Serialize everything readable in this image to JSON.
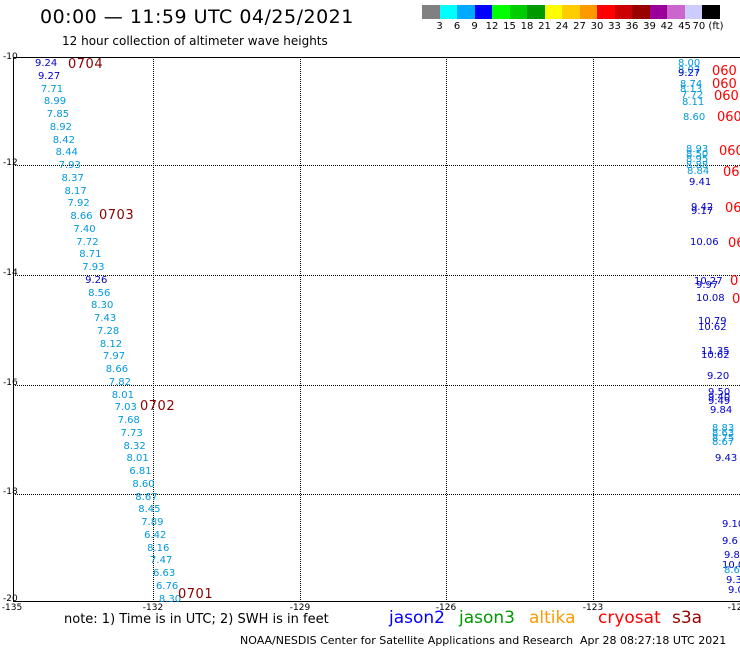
{
  "header": {
    "title": "00:00 — 11:59 UTC 04/25/2021",
    "subtitle": "12 hour collection of altimeter wave heights"
  },
  "colorbar": {
    "colors": [
      "#808080",
      "#00ffff",
      "#00aaff",
      "#0000ff",
      "#00ff00",
      "#00cc00",
      "#009900",
      "#ffff00",
      "#ffcc00",
      "#ff9900",
      "#ff0000",
      "#cc0000",
      "#990000",
      "#990099",
      "#cc66cc",
      "#ccccff",
      "#000000"
    ],
    "labels": [
      "3",
      "6",
      "9",
      "12",
      "15",
      "18",
      "21",
      "24",
      "27",
      "30",
      "33",
      "36",
      "39",
      "42",
      "45",
      "70 (ft)"
    ]
  },
  "axes": {
    "ylabels": [
      "-10",
      "-12",
      "-14",
      "-16",
      "-18",
      "-20"
    ],
    "xlabels": [
      "-135",
      "-132",
      "-129",
      "-126",
      "-123",
      "-12"
    ]
  },
  "track_left": {
    "points": [
      {
        "v": "9.24",
        "c": "#0000cc"
      },
      {
        "v": "9.27",
        "c": "#0000cc"
      },
      {
        "v": "7.71",
        "c": "#0099dd"
      },
      {
        "v": "8.99",
        "c": "#0099dd"
      },
      {
        "v": "7.85",
        "c": "#0099dd"
      },
      {
        "v": "8.92",
        "c": "#0099dd"
      },
      {
        "v": "8.42",
        "c": "#0099dd"
      },
      {
        "v": "8.44",
        "c": "#0099dd"
      },
      {
        "v": "7.93",
        "c": "#0099dd"
      },
      {
        "v": "8.37",
        "c": "#0099dd"
      },
      {
        "v": "8.17",
        "c": "#0099dd"
      },
      {
        "v": "7.92",
        "c": "#0099dd"
      },
      {
        "v": "8.66",
        "c": "#0099dd"
      },
      {
        "v": "7.40",
        "c": "#0099dd"
      },
      {
        "v": "7.72",
        "c": "#0099dd"
      },
      {
        "v": "8.71",
        "c": "#0099dd"
      },
      {
        "v": "7.93",
        "c": "#0099dd"
      },
      {
        "v": "9.26",
        "c": "#0000cc"
      },
      {
        "v": "8.56",
        "c": "#0099dd"
      },
      {
        "v": "8.30",
        "c": "#0099dd"
      },
      {
        "v": "7.43",
        "c": "#0099dd"
      },
      {
        "v": "7.28",
        "c": "#0099dd"
      },
      {
        "v": "8.12",
        "c": "#0099dd"
      },
      {
        "v": "7.97",
        "c": "#0099dd"
      },
      {
        "v": "8.66",
        "c": "#0099dd"
      },
      {
        "v": "7.82",
        "c": "#0099dd"
      },
      {
        "v": "8.01",
        "c": "#0099dd"
      },
      {
        "v": "7.03",
        "c": "#0099dd"
      },
      {
        "v": "7.68",
        "c": "#0099dd"
      },
      {
        "v": "7.73",
        "c": "#0099dd"
      },
      {
        "v": "8.32",
        "c": "#0099dd"
      },
      {
        "v": "8.01",
        "c": "#0099dd"
      },
      {
        "v": "6.81",
        "c": "#0099dd"
      },
      {
        "v": "8.60",
        "c": "#0099dd"
      },
      {
        "v": "8.67",
        "c": "#0099dd"
      },
      {
        "v": "8.45",
        "c": "#0099dd"
      },
      {
        "v": "7.89",
        "c": "#0099dd"
      },
      {
        "v": "6.42",
        "c": "#0099dd"
      },
      {
        "v": "8.16",
        "c": "#0099dd"
      },
      {
        "v": "7.47",
        "c": "#0099dd"
      },
      {
        "v": "6.63",
        "c": "#0099dd"
      },
      {
        "v": "6.76",
        "c": "#0099dd"
      },
      {
        "v": "8.30",
        "c": "#0099dd"
      }
    ],
    "times": [
      "0704",
      "0703",
      "0702",
      "0701"
    ]
  },
  "track_right": {
    "points": [
      {
        "v": "8.00",
        "c": "#0099dd"
      },
      {
        "v": "8.07",
        "c": "#0099dd"
      },
      {
        "v": "9.27",
        "c": "#0000cc"
      },
      {
        "v": "8.74",
        "c": "#0099dd"
      },
      {
        "v": "8.13",
        "c": "#0099dd"
      },
      {
        "v": "7.72",
        "c": "#0099dd"
      },
      {
        "v": "8.11",
        "c": "#0099dd"
      },
      {
        "v": "8.60",
        "c": "#0099dd"
      },
      {
        "v": "8.93",
        "c": "#0099dd"
      },
      {
        "v": "8.50",
        "c": "#0099dd"
      },
      {
        "v": "8.95",
        "c": "#0099dd"
      },
      {
        "v": "8.88",
        "c": "#0099dd"
      },
      {
        "v": "8.84",
        "c": "#0099dd"
      },
      {
        "v": "9.41",
        "c": "#0000cc"
      },
      {
        "v": "9.42",
        "c": "#0000cc"
      },
      {
        "v": "9.17",
        "c": "#0000cc"
      },
      {
        "v": "10.06",
        "c": "#0000cc"
      },
      {
        "v": "10.27",
        "c": "#0000cc"
      },
      {
        "v": "9.97",
        "c": "#0000cc"
      },
      {
        "v": "10.08",
        "c": "#0000cc"
      },
      {
        "v": "10.79",
        "c": "#0000cc"
      },
      {
        "v": "10.62",
        "c": "#0000cc"
      },
      {
        "v": "11.35",
        "c": "#0000cc"
      },
      {
        "v": "10.62",
        "c": "#0000cc"
      },
      {
        "v": "9.20",
        "c": "#0000cc"
      },
      {
        "v": "9.50",
        "c": "#0000cc"
      },
      {
        "v": "9.40",
        "c": "#0000cc"
      },
      {
        "v": "9.49",
        "c": "#0000cc"
      },
      {
        "v": "9.84",
        "c": "#0000cc"
      },
      {
        "v": "8.83",
        "c": "#0099dd"
      },
      {
        "v": "8.63",
        "c": "#0099dd"
      },
      {
        "v": "8.75",
        "c": "#0099dd"
      },
      {
        "v": "8.67",
        "c": "#0099dd"
      },
      {
        "v": "9.43",
        "c": "#0000cc"
      },
      {
        "v": "9.10",
        "c": "#0000cc"
      },
      {
        "v": "9.6",
        "c": "#0000cc"
      },
      {
        "v": "9.8",
        "c": "#0000cc"
      },
      {
        "v": "10.0",
        "c": "#0000cc"
      },
      {
        "v": "8.6",
        "c": "#0099dd"
      },
      {
        "v": "9.3",
        "c": "#0000cc"
      },
      {
        "v": "9.0",
        "c": "#0000cc"
      }
    ],
    "times": [
      "060",
      "060",
      "060",
      "060",
      "060",
      "06",
      "06",
      "06",
      "0",
      "0"
    ]
  },
  "note": "note: 1) Time is in UTC; 2) SWH is in feet",
  "legend": [
    {
      "label": "jason2",
      "color": "#0000ff"
    },
    {
      "label": "jason3",
      "color": "#009900"
    },
    {
      "label": "altika",
      "color": "#ff9900"
    },
    {
      "label": "cryosat",
      "color": "#ff0000"
    },
    {
      "label": "s3a",
      "color": "#990000"
    }
  ],
  "credit": "NOAA/NESDIS Center for Satellite Applications and Research",
  "credit_date": "Apr 28 08:27:18 UTC 2021"
}
